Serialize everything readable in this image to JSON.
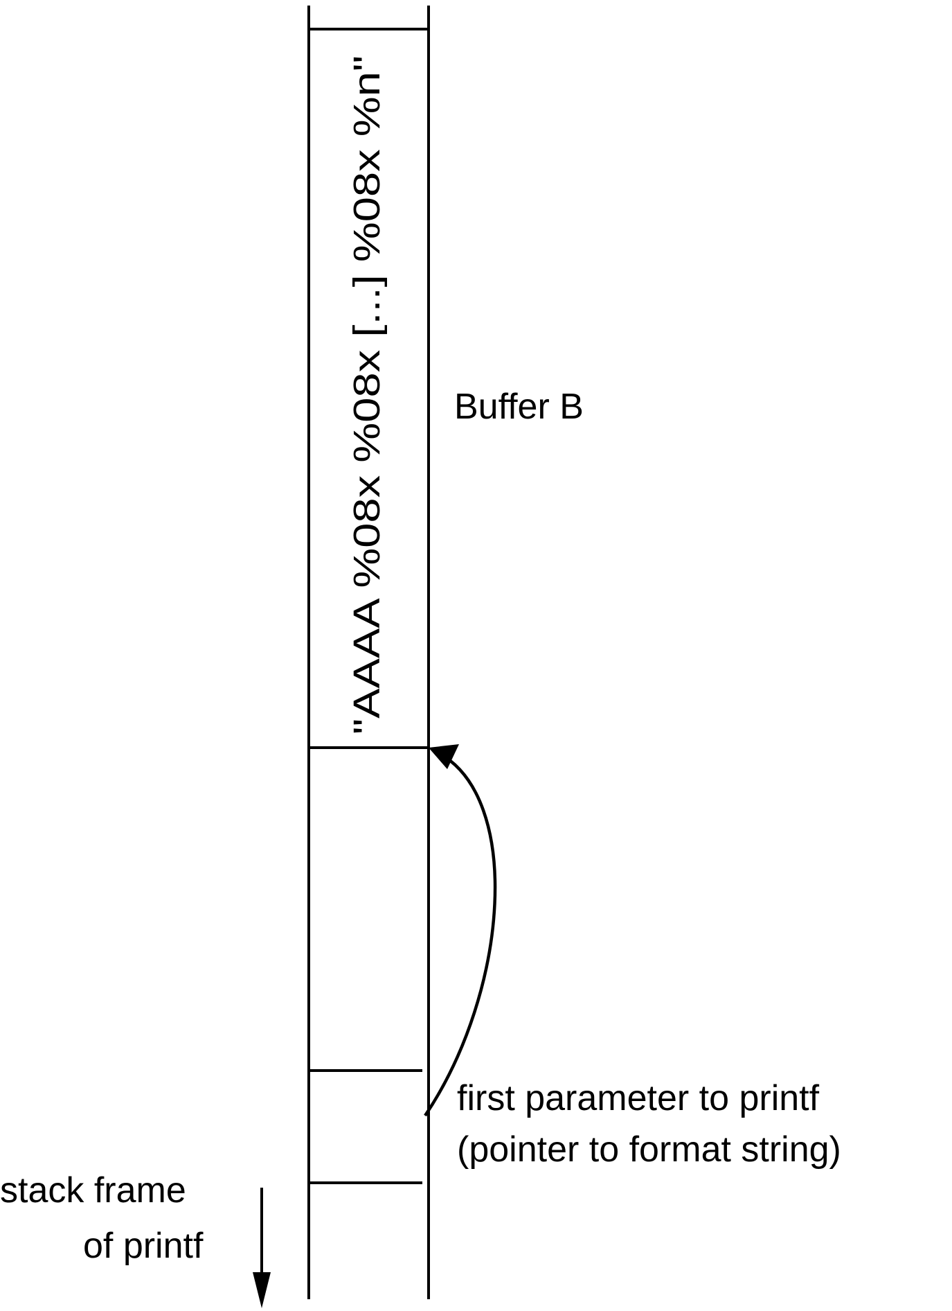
{
  "buffer": {
    "label": "Buffer B",
    "content": "\"AAAA %08x %08x [...] %08x %n\""
  },
  "parameter": {
    "line1": "first parameter to printf",
    "line2": "(pointer to format string)"
  },
  "stack_frame": {
    "line1": "stack frame",
    "line2": "of printf"
  },
  "colors": {
    "line": "#000000",
    "background": "#ffffff"
  }
}
